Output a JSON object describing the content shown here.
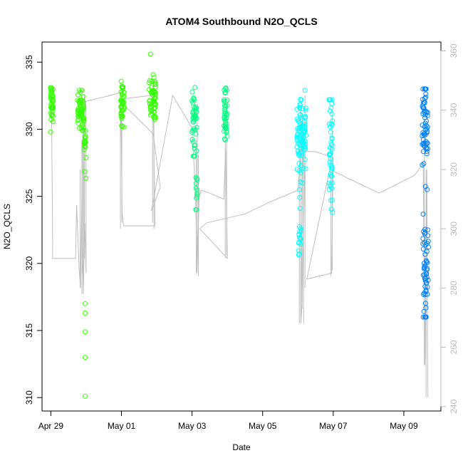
{
  "chart_data": {
    "type": "scatter",
    "title": "ATOM4 Southbound N2O_QCLS",
    "xlabel": "Date",
    "ylabel": "N2O_QCLS",
    "y2label": "",
    "xlim_days": [
      -0.25,
      11.05
    ],
    "ylim": [
      309,
      336.5
    ],
    "y2lim": [
      238.5,
      363
    ],
    "x_ticks": [
      {
        "day": 0,
        "label": "Apr 29"
      },
      {
        "day": 2,
        "label": "May 01"
      },
      {
        "day": 4,
        "label": "May 03"
      },
      {
        "day": 6,
        "label": "May 05"
      },
      {
        "day": 8,
        "label": "May 07"
      },
      {
        "day": 10,
        "label": "May 09"
      }
    ],
    "y_ticks": [
      310,
      315,
      320,
      325,
      330,
      335
    ],
    "y2_ticks": [
      240,
      260,
      280,
      300,
      320,
      340,
      360
    ],
    "grid": false,
    "legend": "none",
    "colors": {
      "green": "#33ff00",
      "teal_green": "#00ff80",
      "cyan": "#00ffff",
      "sky": "#00bfff",
      "blue": "#0080ff",
      "line": "#bebebe",
      "right_axis": "#bbbbbb"
    },
    "point_groups": [
      {
        "color": "green",
        "x_center": 0.03,
        "x_jitter": 0.04,
        "count": 40,
        "y_mean": 331.8,
        "y_sd": 0.8,
        "y_min": 329.8,
        "y_max": 333.1
      },
      {
        "color": "green",
        "x_center": 0.85,
        "x_jitter": 0.09,
        "count": 60,
        "y_mean": 331.4,
        "y_sd": 0.8,
        "y_min": 329.0,
        "y_max": 332.9
      },
      {
        "color": "green",
        "x_center": 0.97,
        "x_jitter": 0.03,
        "count": 16,
        "y_mean": 328.6,
        "y_sd": 1.2,
        "y_min": 325.0,
        "y_max": 329.9
      },
      {
        "color": "green",
        "x_center": 2.03,
        "x_jitter": 0.05,
        "count": 45,
        "y_mean": 332.0,
        "y_sd": 0.9,
        "y_min": 330.0,
        "y_max": 333.7
      },
      {
        "color": "green",
        "x_center": 2.88,
        "x_jitter": 0.09,
        "count": 55,
        "y_mean": 332.2,
        "y_sd": 1.0,
        "y_min": 329.5,
        "y_max": 334.8
      },
      {
        "color": "teal_green",
        "x_center": 4.07,
        "x_jitter": 0.07,
        "count": 45,
        "y_mean": 330.6,
        "y_sd": 1.3,
        "y_min": 328.0,
        "y_max": 333.7
      },
      {
        "color": "teal_green",
        "x_center": 4.12,
        "x_jitter": 0.03,
        "count": 12,
        "y_mean": 325.5,
        "y_sd": 1.0,
        "y_min": 324.0,
        "y_max": 327.5
      },
      {
        "color": "teal_green",
        "x_center": 4.95,
        "x_jitter": 0.05,
        "count": 40,
        "y_mean": 331.2,
        "y_sd": 1.3,
        "y_min": 329.2,
        "y_max": 333.3
      },
      {
        "color": "cyan",
        "x_center": 7.1,
        "x_jitter": 0.13,
        "count": 95,
        "y_mean": 329.6,
        "y_sd": 1.5,
        "y_min": 325.0,
        "y_max": 332.9
      },
      {
        "color": "cyan",
        "x_center": 7.06,
        "x_jitter": 0.05,
        "count": 18,
        "y_mean": 322.0,
        "y_sd": 2.0,
        "y_min": 318.5,
        "y_max": 325.5
      },
      {
        "color": "cyan",
        "x_center": 7.93,
        "x_jitter": 0.05,
        "count": 45,
        "y_mean": 328.3,
        "y_sd": 2.4,
        "y_min": 322.3,
        "y_max": 332.2
      },
      {
        "color": "blue",
        "x_center": 10.6,
        "x_jitter": 0.08,
        "count": 65,
        "y_mean": 330.2,
        "y_sd": 1.8,
        "y_min": 325.5,
        "y_max": 333.0
      },
      {
        "color": "blue",
        "x_center": 10.62,
        "x_jitter": 0.08,
        "count": 55,
        "y_mean": 319.0,
        "y_sd": 2.3,
        "y_min": 316.0,
        "y_max": 324.5
      }
    ],
    "extra_points": [
      {
        "x": 0.97,
        "y": 317.0,
        "color": "green"
      },
      {
        "x": 0.97,
        "y": 316.3,
        "color": "green"
      },
      {
        "x": 0.97,
        "y": 314.9,
        "color": "green"
      },
      {
        "x": 0.97,
        "y": 313.0,
        "color": "green"
      },
      {
        "x": 0.97,
        "y": 310.1,
        "color": "green"
      },
      {
        "x": 2.82,
        "y": 335.6,
        "color": "green"
      }
    ],
    "path_y2": [
      [
        0.0,
        343
      ],
      [
        0.02,
        340
      ],
      [
        0.05,
        295
      ],
      [
        0.05,
        290
      ],
      [
        0.7,
        290
      ],
      [
        0.73,
        308
      ],
      [
        0.8,
        287
      ],
      [
        0.84,
        280
      ],
      [
        0.88,
        312
      ],
      [
        0.92,
        278
      ],
      [
        0.96,
        302
      ],
      [
        1.0,
        285
      ],
      [
        0.99,
        343
      ],
      [
        1.7,
        345
      ],
      [
        1.98,
        346
      ],
      [
        2.02,
        305
      ],
      [
        2.06,
        301
      ],
      [
        2.5,
        301
      ],
      [
        2.95,
        301
      ],
      [
        2.9,
        343
      ],
      [
        2.86,
        345
      ],
      [
        2.15,
        344
      ],
      [
        2.05,
        342
      ],
      [
        2.9,
        332
      ],
      [
        3.1,
        314
      ],
      [
        2.85,
        306
      ],
      [
        3.45,
        345
      ],
      [
        4.0,
        334
      ],
      [
        4.1,
        312
      ],
      [
        4.14,
        285
      ],
      [
        4.2,
        310
      ],
      [
        4.25,
        313
      ],
      [
        4.5,
        312
      ],
      [
        4.9,
        310
      ],
      [
        4.95,
        327
      ],
      [
        5.0,
        290
      ],
      [
        4.22,
        300
      ],
      [
        4.42,
        302
      ],
      [
        5.5,
        305
      ],
      [
        6.2,
        309
      ],
      [
        7.0,
        313
      ],
      [
        7.15,
        335
      ],
      [
        7.08,
        268
      ],
      [
        7.12,
        275
      ],
      [
        7.2,
        326
      ],
      [
        7.5,
        326
      ],
      [
        8.0,
        324
      ],
      [
        7.95,
        285
      ],
      [
        7.25,
        283
      ],
      [
        7.9,
        320
      ],
      [
        9.3,
        312
      ],
      [
        10.3,
        318
      ],
      [
        10.55,
        322
      ],
      [
        10.6,
        254
      ],
      [
        10.65,
        320
      ],
      [
        10.68,
        243
      ]
    ],
    "path_y2_verticals": [
      [
        0.83,
        280,
        320
      ],
      [
        0.88,
        278,
        330
      ],
      [
        0.9,
        285,
        340
      ],
      [
        0.93,
        283,
        338
      ],
      [
        0.95,
        290,
        345
      ],
      [
        1.97,
        300,
        347
      ],
      [
        2.01,
        302,
        346
      ],
      [
        2.88,
        302,
        348
      ],
      [
        2.92,
        300,
        346
      ],
      [
        4.12,
        285,
        330
      ],
      [
        4.15,
        290,
        340
      ],
      [
        4.18,
        284,
        325
      ],
      [
        4.94,
        290,
        340
      ],
      [
        4.98,
        291,
        342
      ],
      [
        7.04,
        268,
        330
      ],
      [
        7.08,
        270,
        342
      ],
      [
        7.12,
        273,
        338
      ],
      [
        7.16,
        268,
        335
      ],
      [
        7.2,
        280,
        345
      ],
      [
        7.93,
        284,
        328
      ],
      [
        7.97,
        286,
        340
      ],
      [
        10.58,
        254,
        325
      ],
      [
        10.63,
        243,
        320
      ]
    ]
  }
}
